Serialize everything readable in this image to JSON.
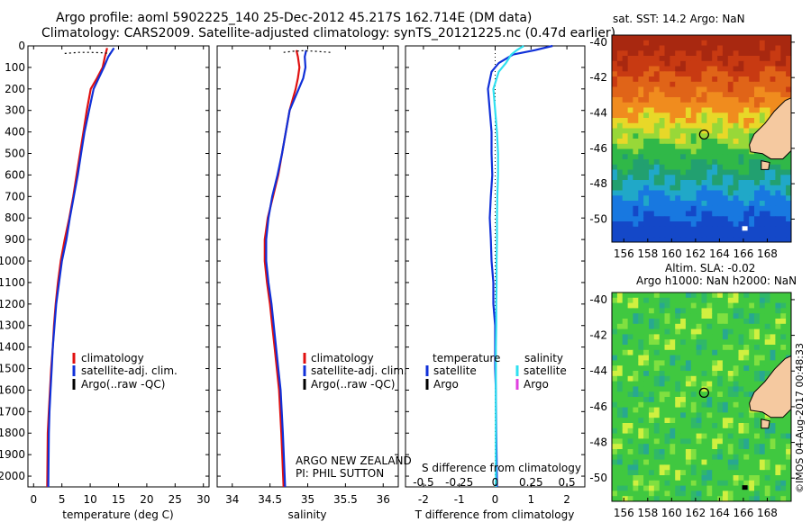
{
  "header": {
    "line1": "Argo profile: aoml 5902225_140 25-Dec-2012 45.217S 162.714E (DM data)",
    "line2": "Climatology: CARS2009. Satellite-adjusted climatology: synTS_20121225.nc (0.47d earlier)"
  },
  "colors": {
    "climatology": "#e01010",
    "satellite": "#1030d8",
    "argo": "#000000",
    "sal_satellite": "#30e0f0",
    "sal_argo": "#e040e0",
    "land": "#f5c9a0"
  },
  "chart_data": [
    {
      "type": "line",
      "id": "temperature",
      "xlabel": "temperature (deg C)",
      "xlim": [
        -1,
        31
      ],
      "xticks": [
        0,
        5,
        10,
        15,
        20,
        25,
        30
      ],
      "ylim": [
        0,
        2050
      ],
      "yticks": [
        0,
        100,
        200,
        300,
        400,
        500,
        600,
        700,
        800,
        900,
        1000,
        1100,
        1200,
        1300,
        1400,
        1500,
        1600,
        1700,
        1800,
        1900,
        2000
      ],
      "legend": [
        "climatology",
        "satellite-adj. clim.",
        "Argo(..raw -QC)"
      ],
      "series": [
        {
          "name": "climatology",
          "color": "climatology",
          "x": [
            13.0,
            12.6,
            12.2,
            11.2,
            10.1,
            9.4,
            8.8,
            8.2,
            7.6,
            7.0,
            6.3,
            5.5,
            4.8,
            4.3,
            3.9,
            3.6,
            3.4,
            3.1,
            2.9,
            2.7,
            2.5,
            2.4
          ],
          "y": [
            10,
            50,
            100,
            150,
            200,
            300,
            400,
            500,
            600,
            700,
            800,
            900,
            1000,
            1100,
            1200,
            1300,
            1400,
            1500,
            1600,
            1700,
            1800,
            2050
          ]
        },
        {
          "name": "satellite-adj. clim.",
          "color": "satellite",
          "x": [
            14.2,
            13.2,
            12.4,
            11.5,
            10.6,
            9.8,
            9.0,
            8.4,
            7.8,
            7.1,
            6.4,
            5.8,
            5.0,
            4.5,
            4.0,
            3.7,
            3.4,
            3.2,
            3.0,
            2.8,
            2.7,
            2.6
          ],
          "y": [
            10,
            50,
            100,
            150,
            200,
            300,
            400,
            500,
            600,
            700,
            800,
            900,
            1000,
            1100,
            1200,
            1300,
            1400,
            1500,
            1600,
            1700,
            1800,
            2050
          ]
        },
        {
          "name": "Argo dotted surface",
          "color": "argo",
          "x": [
            5.5,
            8,
            10,
            12,
            13.5
          ],
          "y": [
            35,
            30,
            30,
            32,
            35
          ]
        }
      ]
    },
    {
      "type": "line",
      "id": "salinity",
      "xlabel": "salinity",
      "xlim": [
        33.8,
        36.2
      ],
      "xticks": [
        34,
        34.5,
        35,
        35.5,
        36
      ],
      "ylim": [
        0,
        2050
      ],
      "legend": [
        "climatology",
        "satellite-adj. clim.",
        "Argo(..raw -QC)"
      ],
      "annotations": [
        "ARGO NEW ZEALAND",
        "PI: PHIL SUTTON"
      ],
      "series": [
        {
          "name": "climatology",
          "color": "climatology",
          "x": [
            34.85,
            34.87,
            34.89,
            34.87,
            34.84,
            34.8,
            34.76,
            34.71,
            34.66,
            34.61,
            34.54,
            34.47,
            34.43,
            34.43,
            34.46,
            34.5,
            34.53,
            34.56,
            34.59,
            34.62,
            34.65,
            34.68
          ],
          "y": [
            20,
            50,
            100,
            150,
            200,
            250,
            300,
            400,
            500,
            600,
            700,
            800,
            900,
            1000,
            1100,
            1200,
            1300,
            1400,
            1500,
            1600,
            1800,
            2050
          ]
        },
        {
          "name": "satellite-adj. clim.",
          "color": "satellite",
          "x": [
            34.98,
            34.96,
            34.97,
            34.94,
            34.88,
            34.82,
            34.76,
            34.71,
            34.66,
            34.6,
            34.53,
            34.48,
            34.45,
            34.45,
            34.48,
            34.52,
            34.55,
            34.58,
            34.61,
            34.64,
            34.67,
            34.7
          ],
          "y": [
            20,
            50,
            100,
            150,
            200,
            250,
            300,
            400,
            500,
            600,
            700,
            800,
            900,
            1000,
            1100,
            1200,
            1300,
            1400,
            1500,
            1600,
            1800,
            2050
          ]
        },
        {
          "name": "Argo dotted surface",
          "color": "argo",
          "x": [
            34.68,
            34.8,
            34.95,
            35.1,
            35.3
          ],
          "y": [
            30,
            25,
            22,
            25,
            30
          ]
        }
      ]
    },
    {
      "type": "line",
      "id": "difference",
      "xlabel": "T difference from climatology",
      "xlabel2": "S difference from climatology",
      "xlim": [
        -2.5,
        2.5
      ],
      "xticks": [
        -2,
        -1,
        0,
        1,
        2
      ],
      "sxticks": [
        "-0.5",
        "-0.25",
        "0",
        "0.25",
        "0.5"
      ],
      "ylim": [
        0,
        2050
      ],
      "legend_temperature": [
        "temperature",
        "satellite",
        "Argo"
      ],
      "legend_salinity": [
        "salinity",
        "satellite",
        "Argo"
      ],
      "series": [
        {
          "name": "T satellite",
          "color": "satellite",
          "x": [
            1.6,
            1.1,
            0.5,
            0.1,
            -0.1,
            -0.2,
            -0.15,
            -0.1,
            -0.1,
            -0.08,
            -0.12,
            -0.15,
            -0.12,
            -0.1,
            -0.05,
            -0.05,
            0.0,
            0.0,
            0.0,
            0.02,
            0.03,
            0.05
          ],
          "y": [
            0,
            20,
            40,
            80,
            120,
            200,
            300,
            400,
            500,
            600,
            700,
            800,
            900,
            1000,
            1100,
            1200,
            1300,
            1400,
            1500,
            1600,
            1800,
            2050
          ]
        },
        {
          "name": "S satellite",
          "color": "sal_satellite",
          "x": [
            0.8,
            0.6,
            0.45,
            0.3,
            0.1,
            -0.05,
            0.0,
            0.05,
            0.08,
            0.08,
            0.06,
            0.05,
            0.05,
            0.04,
            0.04,
            0.03,
            0.03,
            0.02,
            0.02,
            0.02,
            0.02,
            0.02
          ],
          "y": [
            0,
            20,
            40,
            80,
            120,
            200,
            300,
            400,
            500,
            600,
            700,
            800,
            900,
            1000,
            1100,
            1200,
            1300,
            1400,
            1500,
            1600,
            1800,
            2050
          ]
        }
      ]
    },
    {
      "type": "heatmap",
      "id": "sst-map",
      "title": "sat. SST: 14.2  Argo: NaN",
      "xlim": [
        155,
        170
      ],
      "ylim": [
        -51.3,
        -39.6
      ],
      "xticks": [
        156,
        158,
        160,
        162,
        164,
        166,
        168
      ],
      "yticks": [
        -40,
        -42,
        -44,
        -46,
        -48,
        -50
      ],
      "float_lon": 162.714,
      "float_lat": -45.217
    },
    {
      "type": "heatmap",
      "id": "sla-map",
      "title": "Altim. SLA: -0.02",
      "subtitle": "Argo h1000: NaN h2000: NaN",
      "xlim": [
        155,
        170
      ],
      "ylim": [
        -51.3,
        -39.6
      ],
      "xticks": [
        156,
        158,
        160,
        162,
        164,
        166,
        168
      ],
      "yticks": [
        -40,
        -42,
        -44,
        -46,
        -48,
        -50
      ],
      "float_lon": 162.714,
      "float_lat": -45.217
    }
  ],
  "footer": {
    "credit": "©IMOS 04-Aug-2017 00:48:33"
  }
}
